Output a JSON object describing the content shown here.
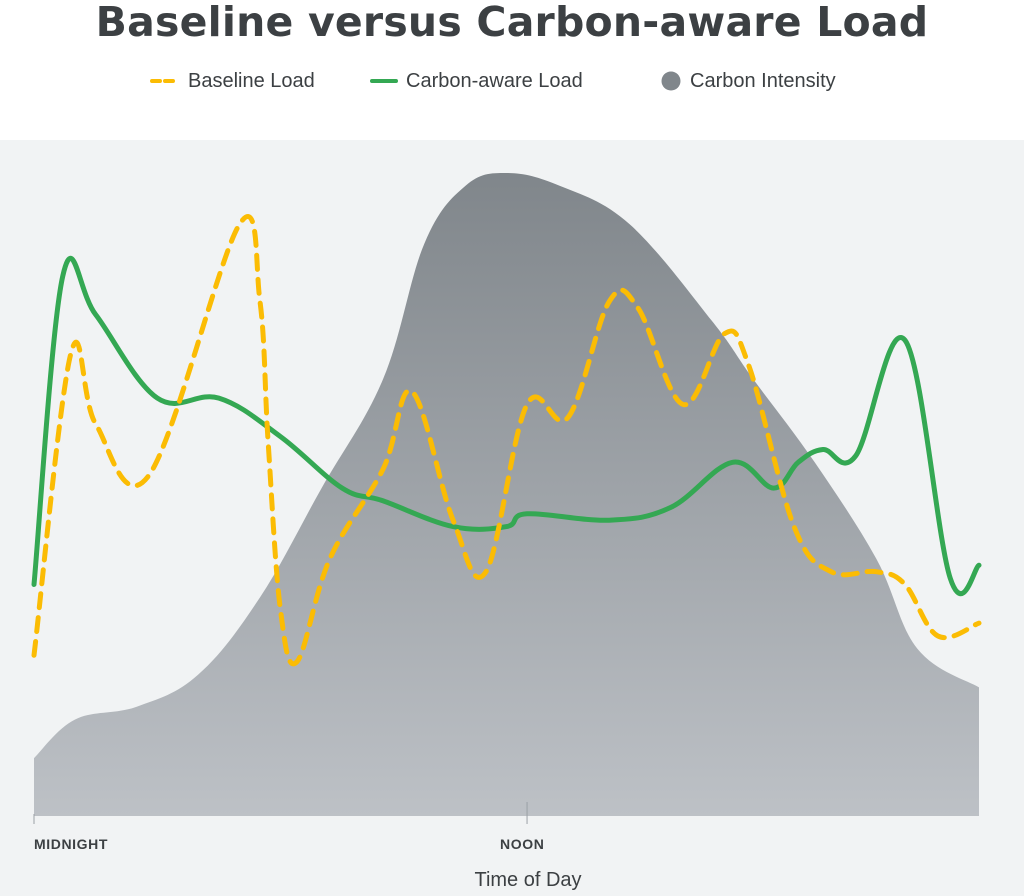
{
  "chart_data": {
    "type": "line",
    "title": "Baseline versus Carbon-aware Load",
    "xlabel": "Time of Day",
    "ylabel": "",
    "x_ticks": [
      {
        "hour": 0,
        "label": "MIDNIGHT"
      },
      {
        "hour": 12,
        "label": "NOON"
      }
    ],
    "xlim": [
      0,
      23
    ],
    "ylim": [
      0,
      100
    ],
    "grid": false,
    "legend_position": "top",
    "series": [
      {
        "name": "Baseline Load",
        "style": "dashed",
        "color": "#fbbc04",
        "points": [
          [
            0.0,
            25
          ],
          [
            0.9,
            72
          ],
          [
            1.5,
            61
          ],
          [
            2.8,
            53
          ],
          [
            5.0,
            92
          ],
          [
            5.5,
            80
          ],
          [
            5.7,
            58
          ],
          [
            6.0,
            32
          ],
          [
            6.4,
            24
          ],
          [
            7.2,
            40
          ],
          [
            8.5,
            54
          ],
          [
            9.2,
            66
          ],
          [
            10.2,
            46
          ],
          [
            11.0,
            38
          ],
          [
            12.0,
            64
          ],
          [
            13.0,
            62
          ],
          [
            14.0,
            80
          ],
          [
            14.7,
            79
          ],
          [
            15.8,
            64
          ],
          [
            16.8,
            75
          ],
          [
            17.4,
            70
          ],
          [
            18.5,
            45
          ],
          [
            19.4,
            38
          ],
          [
            20.5,
            38
          ],
          [
            21.2,
            36
          ],
          [
            22.0,
            28
          ],
          [
            23.0,
            30
          ]
        ]
      },
      {
        "name": "Carbon-aware Load",
        "style": "solid",
        "color": "#34a853",
        "points": [
          [
            0.0,
            36
          ],
          [
            0.7,
            84
          ],
          [
            1.5,
            78
          ],
          [
            3.0,
            65
          ],
          [
            4.5,
            65
          ],
          [
            6.0,
            59
          ],
          [
            7.5,
            51
          ],
          [
            8.5,
            49
          ],
          [
            10.2,
            45
          ],
          [
            11.5,
            45
          ],
          [
            12.0,
            47
          ],
          [
            14.0,
            46
          ],
          [
            15.5,
            48
          ],
          [
            17.0,
            55
          ],
          [
            18.0,
            51
          ],
          [
            18.6,
            55
          ],
          [
            19.2,
            57
          ],
          [
            20.0,
            56
          ],
          [
            21.2,
            74
          ],
          [
            22.3,
            37
          ],
          [
            23.0,
            39
          ]
        ]
      },
      {
        "name": "Carbon Intensity",
        "style": "area",
        "color": "#80868b",
        "points": [
          [
            0.0,
            9
          ],
          [
            1.0,
            15
          ],
          [
            2.5,
            17
          ],
          [
            4.0,
            22
          ],
          [
            5.5,
            34
          ],
          [
            7.0,
            51
          ],
          [
            8.5,
            68
          ],
          [
            9.5,
            89
          ],
          [
            10.5,
            98
          ],
          [
            11.5,
            100
          ],
          [
            12.8,
            98
          ],
          [
            14.5,
            92
          ],
          [
            16.5,
            77
          ],
          [
            17.5,
            68
          ],
          [
            19.0,
            55
          ],
          [
            20.5,
            40
          ],
          [
            21.5,
            26
          ],
          [
            23.0,
            20
          ]
        ]
      }
    ]
  },
  "colors": {
    "plot_background": "#f1f3f4",
    "text": "#3c4043",
    "baseline": "#fbbc04",
    "carbon_aware": "#34a853",
    "intensity_top": "#80868b",
    "intensity_bottom": "#bdc1c6"
  }
}
